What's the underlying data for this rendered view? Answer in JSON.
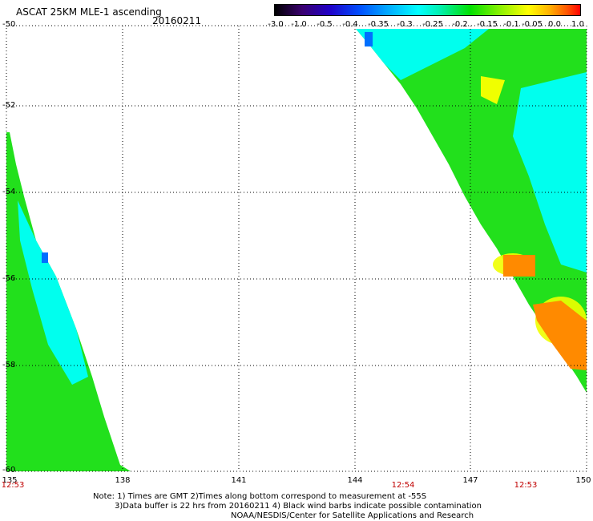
{
  "header": {
    "title": "ASCAT 25KM MLE-1 ascending",
    "date": "20160211"
  },
  "colorbar": {
    "tick_labels": [
      "-3.0",
      "-1.0",
      "-0.5",
      "-0.4",
      "-0.35",
      "-0.3",
      "-0.25",
      "-0.2",
      "-0.15",
      "-0.1",
      "-0.05",
      "0.0",
      "1.0"
    ]
  },
  "axes": {
    "lat_labels": [
      "-50",
      "-52",
      "-54",
      "-56",
      "-58",
      "-60"
    ],
    "lon_labels": [
      "135",
      "138",
      "141",
      "144",
      "147",
      "150"
    ],
    "time_labels": [
      "12:53",
      "12:54",
      "12:53"
    ]
  },
  "notes": {
    "line1": "Note: 1) Times are GMT 2)Times along bottom correspond to measurement at -55S",
    "line2": "3)Data buffer is 22 hrs from 20160211 4) Black wind barbs indicate possible contamination",
    "line3": "NOAA/NESDIS/Center for Satellite Applications and Research"
  },
  "colors": {
    "green": "#22e01c",
    "cyan": "#00ffee",
    "yellow": "#f0ff00",
    "orange": "#ff8a00",
    "blue": "#0070ff"
  }
}
